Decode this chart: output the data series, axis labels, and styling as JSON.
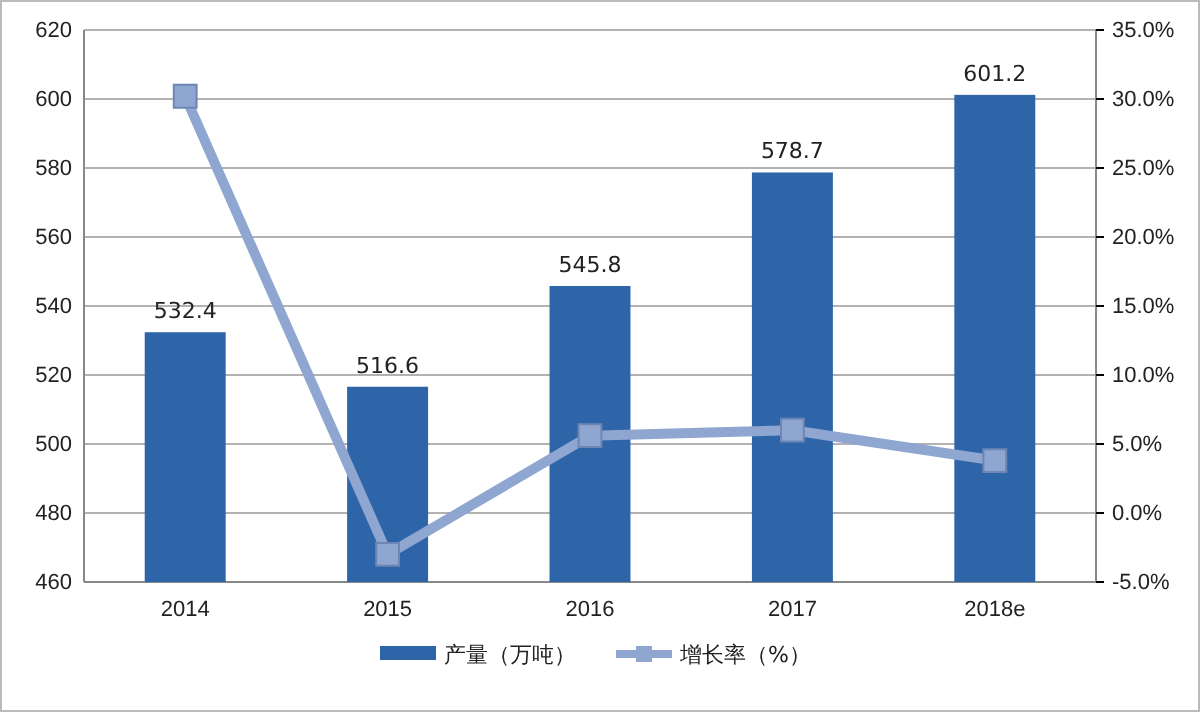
{
  "chart_data": {
    "type": "bar",
    "categories": [
      "2014",
      "2015",
      "2016",
      "2017",
      "2018e"
    ],
    "series": [
      {
        "name": "产量（万吨）",
        "color": "#2e64a8",
        "values": [
          532.4,
          516.6,
          545.8,
          578.7,
          601.2
        ],
        "value_labels": [
          "532.4",
          "516.6",
          "545.8",
          "578.7",
          "601.2"
        ]
      },
      {
        "name": "增长率（%）",
        "type": "line",
        "axis": "y2",
        "color": "#8ea6d0",
        "marker": "square",
        "values": [
          30.2,
          -3.0,
          5.6,
          6.0,
          3.8
        ]
      }
    ],
    "ylim": [
      460,
      620
    ],
    "yticks": [
      460,
      480,
      500,
      520,
      540,
      560,
      580,
      600,
      620
    ],
    "y2lim": [
      -5,
      35
    ],
    "y2ticks": [
      {
        "value": -5,
        "label": "-5.0%"
      },
      {
        "value": 0,
        "label": "0.0%"
      },
      {
        "value": 5,
        "label": "5.0%"
      },
      {
        "value": 10,
        "label": "10.0%"
      },
      {
        "value": 15,
        "label": "15.0%"
      },
      {
        "value": 20,
        "label": "20.0%"
      },
      {
        "value": 25,
        "label": "25.0%"
      },
      {
        "value": 30,
        "label": "30.0%"
      },
      {
        "value": 35,
        "label": "35.0%"
      }
    ],
    "grid": "y",
    "legend": "bottom"
  }
}
